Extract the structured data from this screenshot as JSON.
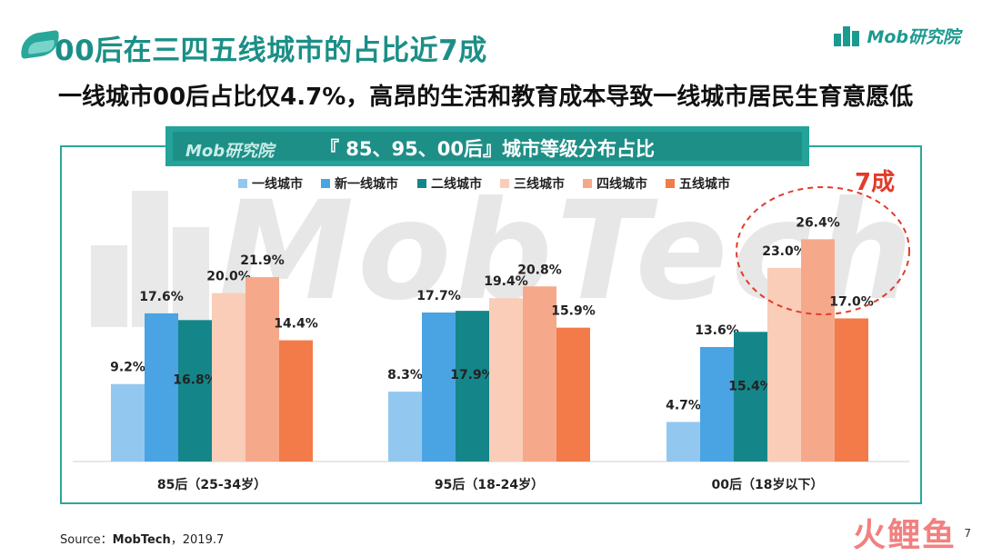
{
  "header": {
    "title": "00后在三四五线城市的占比近7成",
    "subtitle": "一线城市00后占比仅4.7%，高昂的生活和教育成本导致一线城市居民生育意愿低",
    "brand": "Mob研究院"
  },
  "panel": {
    "logo_text": "Mob研究院",
    "title": "『 85、95、00后』城市等级分布占比",
    "watermark": "MobTech"
  },
  "annotation": "7成",
  "footer": {
    "source_label": "Source：",
    "source_name": "MobTech",
    "source_date": "，2019.7",
    "page": "7",
    "corner_mark": "火鲤鱼"
  },
  "colors": {
    "accent": "#1b8f87",
    "frame": "#2aa79b",
    "highlight": "#e23b2a"
  },
  "chart_data": {
    "type": "bar",
    "categories": [
      "85后（25-34岁）",
      "95后（18-24岁）",
      "00后（18岁以下）"
    ],
    "series": [
      {
        "name": "一线城市",
        "color": "#92c8f0",
        "values": [
          9.2,
          8.3,
          4.7
        ]
      },
      {
        "name": "新一线城市",
        "color": "#4aa3e3",
        "values": [
          17.6,
          17.7,
          13.6
        ]
      },
      {
        "name": "二线城市",
        "color": "#14868a",
        "values": [
          16.8,
          17.9,
          15.4
        ]
      },
      {
        "name": "三线城市",
        "color": "#f9cdb8",
        "values": [
          20.0,
          19.4,
          23.0
        ]
      },
      {
        "name": "四线城市",
        "color": "#f6a98a",
        "values": [
          21.9,
          20.8,
          26.4
        ]
      },
      {
        "name": "五线城市",
        "color": "#f27b49",
        "values": [
          14.4,
          15.9,
          17.0
        ]
      }
    ],
    "labels": [
      [
        "9.2%",
        "17.6%",
        "16.8%",
        "20.0%",
        "21.9%",
        "14.4%"
      ],
      [
        "8.3%",
        "17.7%",
        "17.9%",
        "19.4%",
        "20.8%",
        "15.9%"
      ],
      [
        "4.7%",
        "13.6%",
        "15.4%",
        "23.0%",
        "26.4%",
        "17.0%"
      ]
    ],
    "ylim": [
      0,
      30
    ],
    "legend_position": "top",
    "grid": false
  }
}
